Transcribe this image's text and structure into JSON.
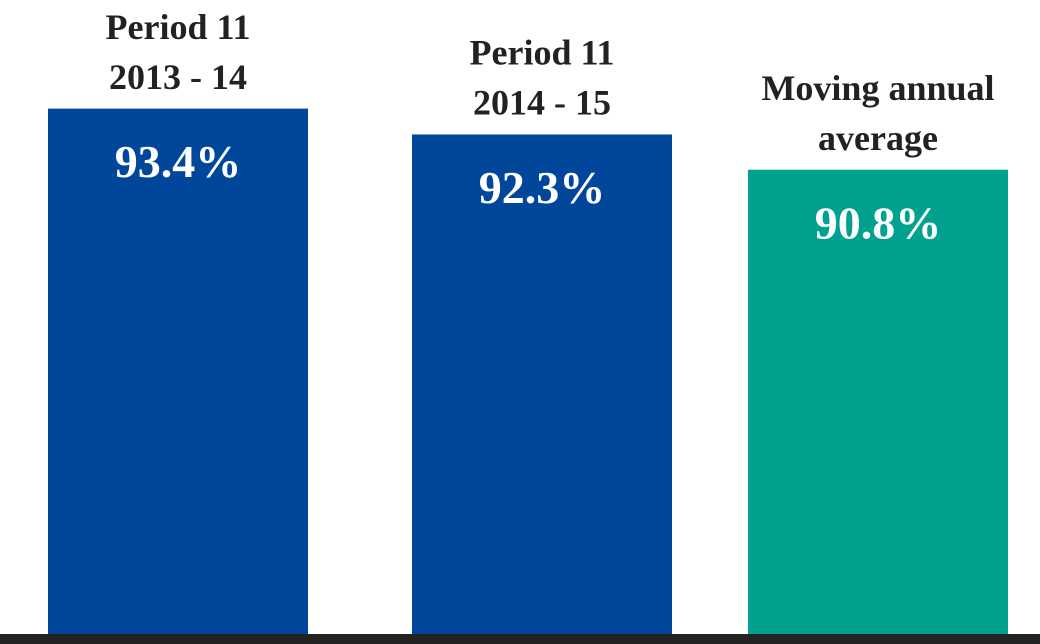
{
  "chart_data": {
    "type": "bar",
    "categories": [
      [
        "Period 11",
        "2013 - 14"
      ],
      [
        "Period 11",
        "2014 - 15"
      ],
      [
        "Moving annual",
        "average"
      ]
    ],
    "values": [
      93.4,
      92.3,
      90.8
    ],
    "value_labels": [
      "93.4%",
      "92.3%",
      "90.8%"
    ],
    "colors": [
      "#00479b",
      "#00479b",
      "#00a28f"
    ],
    "ylim": [
      71,
      95
    ]
  }
}
